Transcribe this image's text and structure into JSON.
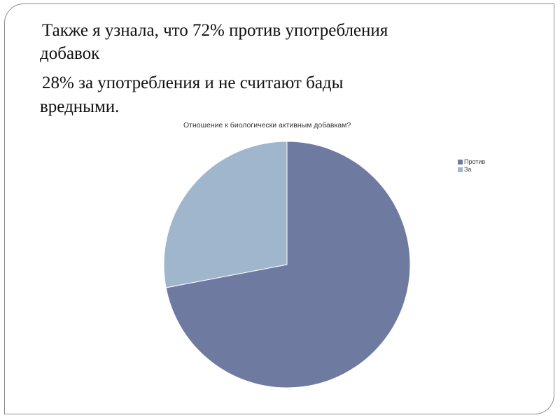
{
  "slide": {
    "line1": "Также я узнала, что 72% против употребления",
    "line2": "добавок",
    "line3": "28% за употребления и не считают бады",
    "line4": "вредными."
  },
  "chart_data": {
    "type": "pie",
    "title": "Отношение к биологически активным добавкам?",
    "categories": [
      "Против",
      "За"
    ],
    "values": [
      72,
      28
    ],
    "colors": [
      "#6f7aa0",
      "#a0b6cd"
    ],
    "start_angle": "top, clockwise",
    "legend": "right"
  }
}
